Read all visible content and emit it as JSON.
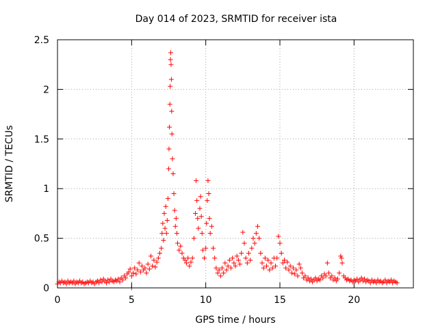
{
  "chart_data": {
    "type": "scatter",
    "title": "Day 014 of 2023, SRMTID for receiver ista",
    "xlabel": "GPS time / hours",
    "ylabel": "SRMTID / TECUs",
    "xlim": [
      0,
      24
    ],
    "ylim": [
      0,
      2.5
    ],
    "grid": true,
    "marker": "+",
    "marker_color": "#ff0000",
    "x_ticks": [
      0,
      5,
      10,
      15,
      20
    ],
    "x_tick_labels": [
      "0",
      "5",
      "10",
      "15",
      "20"
    ],
    "y_ticks": [
      0,
      0.5,
      1,
      1.5,
      2,
      2.5
    ],
    "y_tick_labels": [
      "0",
      "0.5",
      "1",
      "1.5",
      "2",
      "2.5"
    ],
    "series": [
      {
        "name": "SRMTID",
        "points": [
          [
            0.0,
            0.04
          ],
          [
            0.1,
            0.06
          ],
          [
            0.2,
            0.05
          ],
          [
            0.3,
            0.07
          ],
          [
            0.4,
            0.05
          ],
          [
            0.5,
            0.06
          ],
          [
            0.6,
            0.04
          ],
          [
            0.7,
            0.07
          ],
          [
            0.8,
            0.05
          ],
          [
            0.9,
            0.06
          ],
          [
            1.0,
            0.05
          ],
          [
            1.1,
            0.07
          ],
          [
            1.2,
            0.04
          ],
          [
            1.3,
            0.06
          ],
          [
            1.4,
            0.05
          ],
          [
            1.5,
            0.07
          ],
          [
            1.6,
            0.05
          ],
          [
            1.7,
            0.06
          ],
          [
            1.8,
            0.04
          ],
          [
            1.9,
            0.05
          ],
          [
            2.0,
            0.06
          ],
          [
            2.1,
            0.05
          ],
          [
            2.2,
            0.07
          ],
          [
            2.3,
            0.05
          ],
          [
            2.4,
            0.06
          ],
          [
            2.5,
            0.04
          ],
          [
            2.6,
            0.06
          ],
          [
            2.7,
            0.07
          ],
          [
            2.8,
            0.05
          ],
          [
            2.9,
            0.08
          ],
          [
            3.0,
            0.06
          ],
          [
            3.1,
            0.09
          ],
          [
            3.2,
            0.07
          ],
          [
            3.3,
            0.05
          ],
          [
            3.4,
            0.08
          ],
          [
            3.5,
            0.06
          ],
          [
            3.6,
            0.09
          ],
          [
            3.7,
            0.07
          ],
          [
            3.8,
            0.06
          ],
          [
            3.9,
            0.08
          ],
          [
            4.0,
            0.07
          ],
          [
            4.1,
            0.09
          ],
          [
            4.2,
            0.06
          ],
          [
            4.3,
            0.1
          ],
          [
            4.4,
            0.08
          ],
          [
            4.5,
            0.12
          ],
          [
            4.6,
            0.1
          ],
          [
            4.7,
            0.14
          ],
          [
            4.8,
            0.16
          ],
          [
            4.9,
            0.19
          ],
          [
            5.0,
            0.0
          ],
          [
            5.0,
            0.12
          ],
          [
            5.1,
            0.15
          ],
          [
            5.2,
            0.2
          ],
          [
            5.3,
            0.14
          ],
          [
            5.4,
            0.18
          ],
          [
            5.5,
            0.25
          ],
          [
            5.6,
            0.16
          ],
          [
            5.7,
            0.22
          ],
          [
            5.8,
            0.18
          ],
          [
            5.9,
            0.2
          ],
          [
            6.0,
            0.15
          ],
          [
            6.1,
            0.24
          ],
          [
            6.2,
            0.19
          ],
          [
            6.3,
            0.32
          ],
          [
            6.4,
            0.22
          ],
          [
            6.5,
            0.28
          ],
          [
            6.6,
            0.21
          ],
          [
            6.7,
            0.26
          ],
          [
            6.8,
            0.3
          ],
          [
            6.9,
            0.35
          ],
          [
            7.0,
            0.4
          ],
          [
            7.05,
            0.55
          ],
          [
            7.1,
            0.65
          ],
          [
            7.15,
            0.48
          ],
          [
            7.2,
            0.75
          ],
          [
            7.25,
            0.6
          ],
          [
            7.3,
            0.82
          ],
          [
            7.35,
            0.55
          ],
          [
            7.4,
            0.68
          ],
          [
            7.45,
            0.9
          ],
          [
            7.5,
            1.2
          ],
          [
            7.52,
            1.4
          ],
          [
            7.55,
            1.62
          ],
          [
            7.58,
            1.85
          ],
          [
            7.6,
            2.03
          ],
          [
            7.62,
            2.3
          ],
          [
            7.64,
            2.37
          ],
          [
            7.66,
            2.25
          ],
          [
            7.68,
            2.1
          ],
          [
            7.7,
            1.78
          ],
          [
            7.72,
            1.55
          ],
          [
            7.75,
            1.3
          ],
          [
            7.8,
            1.15
          ],
          [
            7.85,
            0.95
          ],
          [
            7.9,
            0.78
          ],
          [
            7.95,
            0.62
          ],
          [
            8.0,
            0.7
          ],
          [
            8.05,
            0.55
          ],
          [
            8.1,
            0.45
          ],
          [
            8.2,
            0.38
          ],
          [
            8.3,
            0.42
          ],
          [
            8.4,
            0.35
          ],
          [
            8.5,
            0.3
          ],
          [
            8.6,
            0.28
          ],
          [
            8.7,
            0.25
          ],
          [
            8.8,
            0.3
          ],
          [
            8.9,
            0.22
          ],
          [
            9.0,
            0.26
          ],
          [
            9.1,
            0.3
          ],
          [
            9.2,
            0.5
          ],
          [
            9.3,
            0.75
          ],
          [
            9.35,
            1.08
          ],
          [
            9.4,
            0.88
          ],
          [
            9.45,
            0.7
          ],
          [
            9.5,
            0.6
          ],
          [
            9.6,
            0.8
          ],
          [
            9.65,
            0.92
          ],
          [
            9.7,
            0.72
          ],
          [
            9.75,
            0.55
          ],
          [
            9.8,
            0.38
          ],
          [
            9.9,
            0.3
          ],
          [
            10.0,
            0.4
          ],
          [
            10.05,
            0.65
          ],
          [
            10.1,
            0.88
          ],
          [
            10.15,
            1.08
          ],
          [
            10.2,
            0.95
          ],
          [
            10.25,
            0.7
          ],
          [
            10.3,
            0.55
          ],
          [
            10.4,
            0.62
          ],
          [
            10.5,
            0.4
          ],
          [
            10.6,
            0.3
          ],
          [
            10.7,
            0.2
          ],
          [
            10.8,
            0.15
          ],
          [
            10.9,
            0.18
          ],
          [
            11.0,
            0.12
          ],
          [
            11.1,
            0.2
          ],
          [
            11.2,
            0.15
          ],
          [
            11.3,
            0.25
          ],
          [
            11.4,
            0.18
          ],
          [
            11.5,
            0.22
          ],
          [
            11.6,
            0.28
          ],
          [
            11.7,
            0.2
          ],
          [
            11.8,
            0.3
          ],
          [
            11.9,
            0.25
          ],
          [
            12.0,
            0.22
          ],
          [
            12.1,
            0.32
          ],
          [
            12.2,
            0.28
          ],
          [
            12.3,
            0.24
          ],
          [
            12.4,
            0.35
          ],
          [
            12.5,
            0.56
          ],
          [
            12.6,
            0.45
          ],
          [
            12.7,
            0.3
          ],
          [
            12.8,
            0.25
          ],
          [
            12.9,
            0.35
          ],
          [
            13.0,
            0.28
          ],
          [
            13.1,
            0.4
          ],
          [
            13.2,
            0.5
          ],
          [
            13.3,
            0.45
          ],
          [
            13.4,
            0.55
          ],
          [
            13.5,
            0.62
          ],
          [
            13.6,
            0.5
          ],
          [
            13.7,
            0.35
          ],
          [
            13.8,
            0.25
          ],
          [
            13.9,
            0.2
          ],
          [
            14.0,
            0.3
          ],
          [
            14.1,
            0.22
          ],
          [
            14.2,
            0.28
          ],
          [
            14.3,
            0.18
          ],
          [
            14.4,
            0.25
          ],
          [
            14.5,
            0.2
          ],
          [
            14.6,
            0.3
          ],
          [
            14.7,
            0.22
          ],
          [
            14.8,
            0.3
          ],
          [
            14.9,
            0.52
          ],
          [
            15.0,
            0.45
          ],
          [
            15.1,
            0.35
          ],
          [
            15.2,
            0.25
          ],
          [
            15.3,
            0.28
          ],
          [
            15.4,
            0.2
          ],
          [
            15.5,
            0.26
          ],
          [
            15.6,
            0.18
          ],
          [
            15.7,
            0.22
          ],
          [
            15.8,
            0.15
          ],
          [
            15.9,
            0.2
          ],
          [
            16.0,
            0.14
          ],
          [
            16.1,
            0.18
          ],
          [
            16.2,
            0.12
          ],
          [
            16.3,
            0.24
          ],
          [
            16.4,
            0.2
          ],
          [
            16.5,
            0.15
          ],
          [
            16.6,
            0.1
          ],
          [
            16.7,
            0.12
          ],
          [
            16.8,
            0.08
          ],
          [
            16.9,
            0.1
          ],
          [
            17.0,
            0.07
          ],
          [
            17.1,
            0.09
          ],
          [
            17.2,
            0.06
          ],
          [
            17.3,
            0.08
          ],
          [
            17.4,
            0.1
          ],
          [
            17.5,
            0.07
          ],
          [
            17.6,
            0.09
          ],
          [
            17.7,
            0.08
          ],
          [
            17.8,
            0.12
          ],
          [
            17.9,
            0.1
          ],
          [
            18.0,
            0.14
          ],
          [
            18.1,
            0.12
          ],
          [
            18.2,
            0.25
          ],
          [
            18.3,
            0.15
          ],
          [
            18.4,
            0.1
          ],
          [
            18.5,
            0.12
          ],
          [
            18.6,
            0.08
          ],
          [
            18.7,
            0.1
          ],
          [
            18.8,
            0.07
          ],
          [
            18.9,
            0.09
          ],
          [
            19.0,
            0.15
          ],
          [
            19.1,
            0.32
          ],
          [
            19.15,
            0.3
          ],
          [
            19.2,
            0.25
          ],
          [
            19.3,
            0.12
          ],
          [
            19.4,
            0.1
          ],
          [
            19.5,
            0.08
          ],
          [
            19.6,
            0.09
          ],
          [
            19.7,
            0.07
          ],
          [
            19.8,
            0.08
          ],
          [
            19.9,
            0.06
          ],
          [
            20.0,
            0.08
          ],
          [
            20.1,
            0.07
          ],
          [
            20.2,
            0.09
          ],
          [
            20.3,
            0.06
          ],
          [
            20.4,
            0.08
          ],
          [
            20.5,
            0.1
          ],
          [
            20.6,
            0.07
          ],
          [
            20.7,
            0.09
          ],
          [
            20.8,
            0.06
          ],
          [
            20.9,
            0.08
          ],
          [
            21.0,
            0.07
          ],
          [
            21.1,
            0.05
          ],
          [
            21.2,
            0.08
          ],
          [
            21.3,
            0.06
          ],
          [
            21.4,
            0.07
          ],
          [
            21.5,
            0.05
          ],
          [
            21.6,
            0.08
          ],
          [
            21.7,
            0.06
          ],
          [
            21.8,
            0.07
          ],
          [
            21.9,
            0.05
          ],
          [
            22.0,
            0.06
          ],
          [
            22.1,
            0.08
          ],
          [
            22.2,
            0.05
          ],
          [
            22.3,
            0.07
          ],
          [
            22.4,
            0.06
          ],
          [
            22.5,
            0.08
          ],
          [
            22.6,
            0.05
          ],
          [
            22.7,
            0.07
          ],
          [
            22.8,
            0.06
          ],
          [
            22.9,
            0.05
          ]
        ]
      }
    ]
  }
}
